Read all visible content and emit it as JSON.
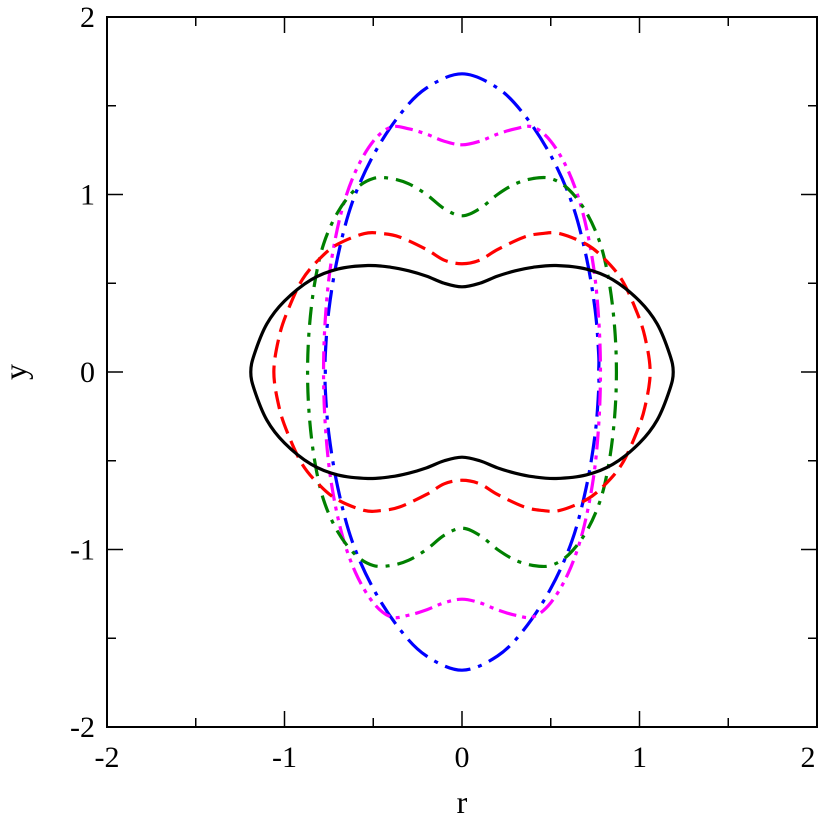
{
  "chart_data": {
    "type": "line",
    "xlabel": "r",
    "ylabel": "y",
    "xlim": [
      -2,
      2
    ],
    "ylim": [
      -2,
      2
    ],
    "x_ticks": [
      -2,
      -1,
      0,
      1,
      2
    ],
    "y_ticks": [
      -2,
      -1,
      0,
      1,
      2
    ],
    "x_tick_labels": [
      "-2",
      "-1",
      "0",
      "1",
      "2"
    ],
    "y_tick_labels": [
      "-2",
      "-1",
      "0",
      "1",
      "2"
    ],
    "minor_ticks_per_interval": 2,
    "grid": false,
    "legend": "none",
    "series": [
      {
        "color": "#000000",
        "dash": "solid",
        "curve": "closed, symmetric in r and y",
        "points_upper_right": [
          [
            0,
            0.48
          ],
          [
            0.1,
            0.5
          ],
          [
            0.2,
            0.54
          ],
          [
            0.3,
            0.57
          ],
          [
            0.4,
            0.59
          ],
          [
            0.53,
            0.6
          ],
          [
            0.7,
            0.58
          ],
          [
            0.85,
            0.52
          ],
          [
            1.0,
            0.4
          ],
          [
            1.1,
            0.27
          ],
          [
            1.17,
            0.1
          ],
          [
            1.19,
            0
          ]
        ]
      },
      {
        "color": "#ff0000",
        "dash": "dashed",
        "curve": "closed, symmetric in r and y",
        "points_upper_right": [
          [
            0,
            0.61
          ],
          [
            0.1,
            0.63
          ],
          [
            0.2,
            0.69
          ],
          [
            0.35,
            0.76
          ],
          [
            0.45,
            0.78
          ],
          [
            0.55,
            0.78
          ],
          [
            0.7,
            0.72
          ],
          [
            0.8,
            0.64
          ],
          [
            0.9,
            0.52
          ],
          [
            0.98,
            0.35
          ],
          [
            1.03,
            0.2
          ],
          [
            1.06,
            0
          ]
        ]
      },
      {
        "color": "#008000",
        "dash": "dash-dot",
        "curve": "closed, symmetric in r and y",
        "points_upper_right": [
          [
            0,
            0.88
          ],
          [
            0.1,
            0.92
          ],
          [
            0.2,
            1.0
          ],
          [
            0.3,
            1.06
          ],
          [
            0.4,
            1.09
          ],
          [
            0.5,
            1.09
          ],
          [
            0.6,
            1.03
          ],
          [
            0.7,
            0.9
          ],
          [
            0.78,
            0.72
          ],
          [
            0.83,
            0.5
          ],
          [
            0.86,
            0.25
          ],
          [
            0.87,
            0
          ]
        ]
      },
      {
        "color": "#ff00ff",
        "dash": "dash-dot-dot",
        "curve": "closed, symmetric in r and y",
        "points_upper_right": [
          [
            0,
            1.28
          ],
          [
            0.1,
            1.3
          ],
          [
            0.2,
            1.34
          ],
          [
            0.3,
            1.37
          ],
          [
            0.4,
            1.38
          ],
          [
            0.5,
            1.3
          ],
          [
            0.6,
            1.13
          ],
          [
            0.68,
            0.9
          ],
          [
            0.74,
            0.6
          ],
          [
            0.77,
            0.3
          ],
          [
            0.78,
            0
          ]
        ]
      },
      {
        "color": "#0000ff",
        "dash": "long-dash-dot",
        "curve": "closed, symmetric in r and y",
        "points_upper_right": [
          [
            0,
            1.68
          ],
          [
            0.2,
            1.6
          ],
          [
            0.35,
            1.45
          ],
          [
            0.5,
            1.22
          ],
          [
            0.62,
            0.95
          ],
          [
            0.7,
            0.65
          ],
          [
            0.75,
            0.35
          ],
          [
            0.77,
            0.1
          ],
          [
            0.77,
            0
          ]
        ]
      }
    ]
  }
}
